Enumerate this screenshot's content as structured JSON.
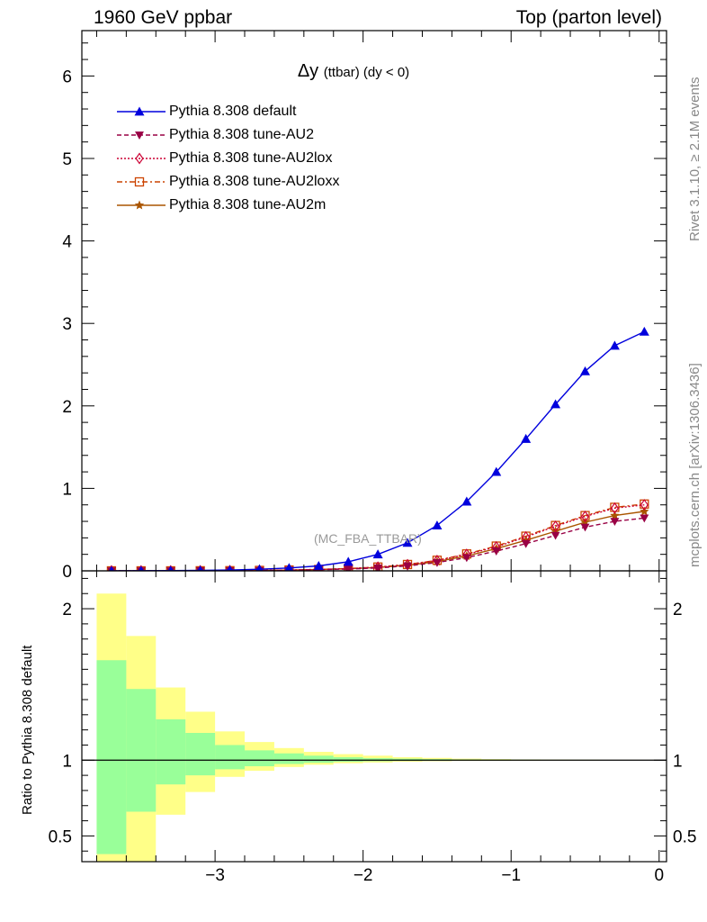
{
  "header": {
    "left": "1960 GeV ppbar",
    "right": "Top (parton level)"
  },
  "side_labels": {
    "rivet": "Rivet 3.1.10, ≥ 2.1M events",
    "mcplots": "mcplots.cern.ch [arXiv:1306.3436]"
  },
  "watermark": "(MC_FBA_TTBAR)",
  "chart_data": [
    {
      "type": "line",
      "title": "Δy",
      "title_sub": "(ttbar) (dy < 0)",
      "xlabel": "",
      "ylabel": "",
      "xlim": [
        -3.9,
        0.05
      ],
      "ylim": [
        0,
        6.55
      ],
      "yticks": [
        0,
        1,
        2,
        3,
        4,
        5,
        6
      ],
      "legend_placement": "top-left",
      "x": [
        -3.7,
        -3.5,
        -3.3,
        -3.1,
        -2.9,
        -2.7,
        -2.5,
        -2.3,
        -2.1,
        -1.9,
        -1.7,
        -1.5,
        -1.3,
        -1.1,
        -0.9,
        -0.7,
        -0.5,
        -0.3,
        -0.1
      ],
      "series": [
        {
          "name": "Pythia 8.308 default",
          "color": "#0000dd",
          "marker": "triangle-up",
          "dash": "solid",
          "values": [
            0.0,
            0.002,
            0.003,
            0.006,
            0.01,
            0.02,
            0.035,
            0.06,
            0.11,
            0.2,
            0.34,
            0.55,
            0.84,
            1.2,
            1.6,
            2.02,
            2.42,
            2.73,
            2.9
          ]
        },
        {
          "name": "Pythia 8.308 tune-AU2",
          "color": "#990044",
          "marker": "triangle-down",
          "dash": "dash",
          "values": [
            0.0,
            0.0,
            0.0,
            0.001,
            0.002,
            0.004,
            0.008,
            0.014,
            0.022,
            0.035,
            0.06,
            0.1,
            0.16,
            0.24,
            0.33,
            0.43,
            0.53,
            0.6,
            0.64
          ]
        },
        {
          "name": "Pythia 8.308 tune-AU2lox",
          "color": "#cc0033",
          "marker": "diamond",
          "dash": "dot",
          "values": [
            0.0,
            0.0,
            0.0,
            0.001,
            0.002,
            0.005,
            0.01,
            0.017,
            0.027,
            0.045,
            0.075,
            0.125,
            0.2,
            0.29,
            0.41,
            0.54,
            0.66,
            0.76,
            0.8
          ]
        },
        {
          "name": "Pythia 8.308 tune-AU2loxx",
          "color": "#cc4400",
          "marker": "square-open",
          "dash": "dashdot",
          "values": [
            0.0,
            0.0,
            0.0,
            0.001,
            0.002,
            0.005,
            0.01,
            0.017,
            0.028,
            0.046,
            0.077,
            0.128,
            0.205,
            0.3,
            0.42,
            0.55,
            0.67,
            0.77,
            0.81
          ]
        },
        {
          "name": "Pythia 8.308 tune-AU2m",
          "color": "#aa5500",
          "marker": "star",
          "dash": "solid",
          "values": [
            0.0,
            0.0,
            0.0,
            0.001,
            0.002,
            0.004,
            0.009,
            0.015,
            0.025,
            0.04,
            0.068,
            0.112,
            0.18,
            0.27,
            0.37,
            0.48,
            0.59,
            0.67,
            0.72
          ]
        }
      ]
    },
    {
      "type": "area",
      "xlabel": "",
      "ylabel": "Ratio to Pythia 8.308 default",
      "xlim": [
        -3.9,
        0.05
      ],
      "ylim": [
        0.33,
        2.25
      ],
      "yticks": [
        0.5,
        1,
        2
      ],
      "xticks": [
        -3,
        -2,
        -1,
        0
      ],
      "reference_line": 1,
      "bin_edges": [
        -3.8,
        -3.6,
        -3.4,
        -3.2,
        -3.0,
        -2.8,
        -2.6,
        -2.4,
        -2.2,
        -2.0,
        -1.8,
        -1.6,
        -1.4,
        -1.2,
        -1.0,
        -0.8,
        -0.6,
        -0.4,
        -0.2,
        0.0
      ],
      "bands": [
        {
          "name": "",
          "color": "#ffff88",
          "low": [
            0.33,
            0.33,
            0.64,
            0.79,
            0.89,
            0.93,
            0.955,
            0.97,
            0.98,
            0.985,
            0.99,
            0.993,
            0.995,
            0.996,
            0.997,
            0.998,
            0.998,
            0.999,
            0.999
          ],
          "high": [
            2.1,
            1.82,
            1.48,
            1.32,
            1.19,
            1.12,
            1.08,
            1.055,
            1.04,
            1.03,
            1.02,
            1.015,
            1.01,
            1.007,
            1.005,
            1.004,
            1.003,
            1.002,
            1.002
          ]
        },
        {
          "name": "",
          "color": "#99ff99",
          "low": [
            0.38,
            0.66,
            0.84,
            0.9,
            0.94,
            0.96,
            0.975,
            0.983,
            0.99,
            0.993,
            0.995,
            0.997,
            0.998,
            0.998,
            0.999,
            0.999,
            0.999,
            0.9995,
            0.9995
          ],
          "high": [
            1.66,
            1.47,
            1.27,
            1.18,
            1.1,
            1.065,
            1.045,
            1.03,
            1.02,
            1.013,
            1.01,
            1.007,
            1.005,
            1.004,
            1.003,
            1.002,
            1.002,
            1.001,
            1.001
          ]
        }
      ]
    }
  ]
}
